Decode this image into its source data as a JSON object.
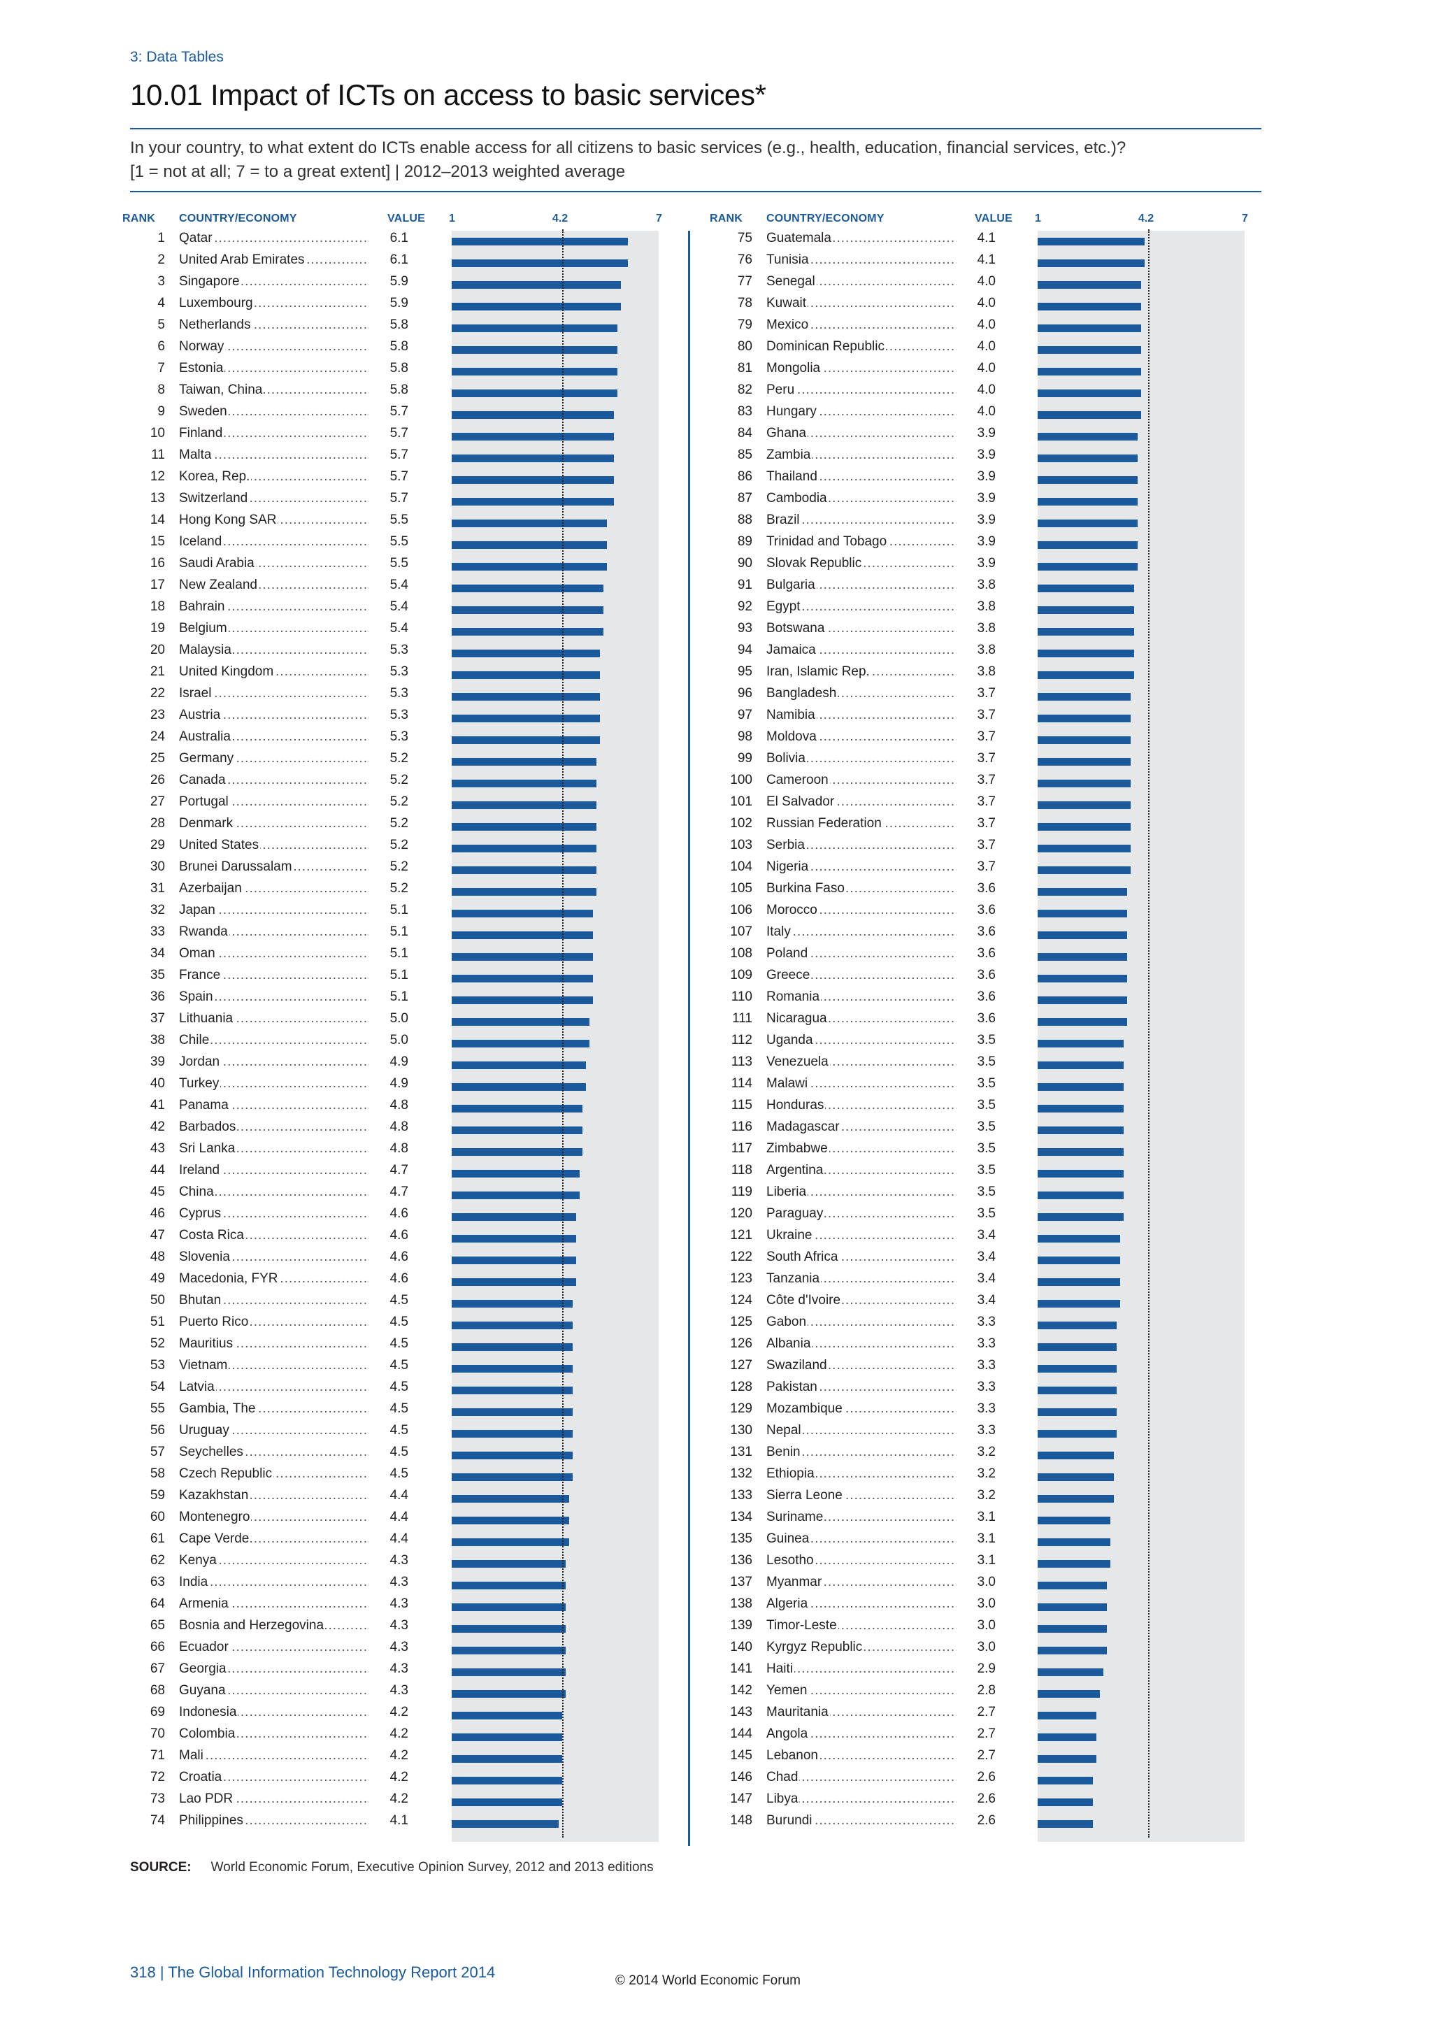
{
  "section": "3: Data Tables",
  "title": "10.01 Impact of ICTs on access to basic services*",
  "question_line1": "In your country, to what extent do ICTs enable access for all citizens to basic services (e.g., health, education, financial services, etc.)?",
  "question_line2": "[1 = not at all; 7 = to a great extent]  |  2012–2013 weighted average",
  "headers": {
    "rank": "RANK",
    "country": "COUNTRY/ECONOMY",
    "value": "VALUE"
  },
  "scale": {
    "min_label": "1",
    "ref_label": "4.2",
    "max_label": "7"
  },
  "source_label": "SOURCE:",
  "source_text": "World Economic Forum, Executive Opinion Survey, 2012 and 2013 editions",
  "footer_page": "318  |  The Global Information Technology Report 2014",
  "footer_copy": "© 2014 World Economic Forum",
  "colors": {
    "bar": "#1a5a9c",
    "panel": "#e6e7e8",
    "accent": "#1a5a9c"
  },
  "chart_data": {
    "type": "bar",
    "orientation": "horizontal",
    "xlim": [
      1,
      7
    ],
    "reference_value": 4.2,
    "rows": [
      {
        "rank": "1",
        "country": "Qatar",
        "value": "6.1"
      },
      {
        "rank": "2",
        "country": "United Arab Emirates",
        "value": "6.1"
      },
      {
        "rank": "3",
        "country": "Singapore",
        "value": "5.9"
      },
      {
        "rank": "4",
        "country": "Luxembourg",
        "value": "5.9"
      },
      {
        "rank": "5",
        "country": "Netherlands",
        "value": "5.8"
      },
      {
        "rank": "6",
        "country": "Norway",
        "value": "5.8"
      },
      {
        "rank": "7",
        "country": "Estonia",
        "value": "5.8"
      },
      {
        "rank": "8",
        "country": "Taiwan, China",
        "value": "5.8"
      },
      {
        "rank": "9",
        "country": "Sweden",
        "value": "5.7"
      },
      {
        "rank": "10",
        "country": "Finland",
        "value": "5.7"
      },
      {
        "rank": "11",
        "country": "Malta",
        "value": "5.7"
      },
      {
        "rank": "12",
        "country": "Korea, Rep.",
        "value": "5.7"
      },
      {
        "rank": "13",
        "country": "Switzerland",
        "value": "5.7"
      },
      {
        "rank": "14",
        "country": "Hong Kong SAR",
        "value": "5.5"
      },
      {
        "rank": "15",
        "country": "Iceland",
        "value": "5.5"
      },
      {
        "rank": "16",
        "country": "Saudi Arabia",
        "value": "5.5"
      },
      {
        "rank": "17",
        "country": "New Zealand",
        "value": "5.4"
      },
      {
        "rank": "18",
        "country": "Bahrain",
        "value": "5.4"
      },
      {
        "rank": "19",
        "country": "Belgium",
        "value": "5.4"
      },
      {
        "rank": "20",
        "country": "Malaysia",
        "value": "5.3"
      },
      {
        "rank": "21",
        "country": "United Kingdom",
        "value": "5.3"
      },
      {
        "rank": "22",
        "country": "Israel",
        "value": "5.3"
      },
      {
        "rank": "23",
        "country": "Austria",
        "value": "5.3"
      },
      {
        "rank": "24",
        "country": "Australia",
        "value": "5.3"
      },
      {
        "rank": "25",
        "country": "Germany",
        "value": "5.2"
      },
      {
        "rank": "26",
        "country": "Canada",
        "value": "5.2"
      },
      {
        "rank": "27",
        "country": "Portugal",
        "value": "5.2"
      },
      {
        "rank": "28",
        "country": "Denmark",
        "value": "5.2"
      },
      {
        "rank": "29",
        "country": "United States",
        "value": "5.2"
      },
      {
        "rank": "30",
        "country": "Brunei Darussalam",
        "value": "5.2"
      },
      {
        "rank": "31",
        "country": "Azerbaijan",
        "value": "5.2"
      },
      {
        "rank": "32",
        "country": "Japan",
        "value": "5.1"
      },
      {
        "rank": "33",
        "country": "Rwanda",
        "value": "5.1"
      },
      {
        "rank": "34",
        "country": "Oman",
        "value": "5.1"
      },
      {
        "rank": "35",
        "country": "France",
        "value": "5.1"
      },
      {
        "rank": "36",
        "country": "Spain",
        "value": "5.1"
      },
      {
        "rank": "37",
        "country": "Lithuania",
        "value": "5.0"
      },
      {
        "rank": "38",
        "country": "Chile",
        "value": "5.0"
      },
      {
        "rank": "39",
        "country": "Jordan",
        "value": "4.9"
      },
      {
        "rank": "40",
        "country": "Turkey",
        "value": "4.9"
      },
      {
        "rank": "41",
        "country": "Panama",
        "value": "4.8"
      },
      {
        "rank": "42",
        "country": "Barbados",
        "value": "4.8"
      },
      {
        "rank": "43",
        "country": "Sri Lanka",
        "value": "4.8"
      },
      {
        "rank": "44",
        "country": "Ireland",
        "value": "4.7"
      },
      {
        "rank": "45",
        "country": "China",
        "value": "4.7"
      },
      {
        "rank": "46",
        "country": "Cyprus",
        "value": "4.6"
      },
      {
        "rank": "47",
        "country": "Costa Rica",
        "value": "4.6"
      },
      {
        "rank": "48",
        "country": "Slovenia",
        "value": "4.6"
      },
      {
        "rank": "49",
        "country": "Macedonia, FYR",
        "value": "4.6"
      },
      {
        "rank": "50",
        "country": "Bhutan",
        "value": "4.5"
      },
      {
        "rank": "51",
        "country": "Puerto Rico",
        "value": "4.5"
      },
      {
        "rank": "52",
        "country": "Mauritius",
        "value": "4.5"
      },
      {
        "rank": "53",
        "country": "Vietnam",
        "value": "4.5"
      },
      {
        "rank": "54",
        "country": "Latvia",
        "value": "4.5"
      },
      {
        "rank": "55",
        "country": "Gambia, The",
        "value": "4.5"
      },
      {
        "rank": "56",
        "country": "Uruguay",
        "value": "4.5"
      },
      {
        "rank": "57",
        "country": "Seychelles",
        "value": "4.5"
      },
      {
        "rank": "58",
        "country": "Czech Republic",
        "value": "4.5"
      },
      {
        "rank": "59",
        "country": "Kazakhstan",
        "value": "4.4"
      },
      {
        "rank": "60",
        "country": "Montenegro",
        "value": "4.4"
      },
      {
        "rank": "61",
        "country": "Cape Verde",
        "value": "4.4"
      },
      {
        "rank": "62",
        "country": "Kenya",
        "value": "4.3"
      },
      {
        "rank": "63",
        "country": "India",
        "value": "4.3"
      },
      {
        "rank": "64",
        "country": "Armenia",
        "value": "4.3"
      },
      {
        "rank": "65",
        "country": "Bosnia and Herzegovina",
        "value": "4.3"
      },
      {
        "rank": "66",
        "country": "Ecuador",
        "value": "4.3"
      },
      {
        "rank": "67",
        "country": "Georgia",
        "value": "4.3"
      },
      {
        "rank": "68",
        "country": "Guyana",
        "value": "4.3"
      },
      {
        "rank": "69",
        "country": "Indonesia",
        "value": "4.2"
      },
      {
        "rank": "70",
        "country": "Colombia",
        "value": "4.2"
      },
      {
        "rank": "71",
        "country": "Mali",
        "value": "4.2"
      },
      {
        "rank": "72",
        "country": "Croatia",
        "value": "4.2"
      },
      {
        "rank": "73",
        "country": "Lao PDR",
        "value": "4.2"
      },
      {
        "rank": "74",
        "country": "Philippines",
        "value": "4.1"
      },
      {
        "rank": "75",
        "country": "Guatemala",
        "value": "4.1"
      },
      {
        "rank": "76",
        "country": "Tunisia",
        "value": "4.1"
      },
      {
        "rank": "77",
        "country": "Senegal",
        "value": "4.0"
      },
      {
        "rank": "78",
        "country": "Kuwait",
        "value": "4.0"
      },
      {
        "rank": "79",
        "country": "Mexico",
        "value": "4.0"
      },
      {
        "rank": "80",
        "country": "Dominican Republic",
        "value": "4.0"
      },
      {
        "rank": "81",
        "country": "Mongolia",
        "value": "4.0"
      },
      {
        "rank": "82",
        "country": "Peru",
        "value": "4.0"
      },
      {
        "rank": "83",
        "country": "Hungary",
        "value": "4.0"
      },
      {
        "rank": "84",
        "country": "Ghana",
        "value": "3.9"
      },
      {
        "rank": "85",
        "country": "Zambia",
        "value": "3.9"
      },
      {
        "rank": "86",
        "country": "Thailand",
        "value": "3.9"
      },
      {
        "rank": "87",
        "country": "Cambodia",
        "value": "3.9"
      },
      {
        "rank": "88",
        "country": "Brazil",
        "value": "3.9"
      },
      {
        "rank": "89",
        "country": "Trinidad and Tobago",
        "value": "3.9"
      },
      {
        "rank": "90",
        "country": "Slovak Republic",
        "value": "3.9"
      },
      {
        "rank": "91",
        "country": "Bulgaria",
        "value": "3.8"
      },
      {
        "rank": "92",
        "country": "Egypt",
        "value": "3.8"
      },
      {
        "rank": "93",
        "country": "Botswana",
        "value": "3.8"
      },
      {
        "rank": "94",
        "country": "Jamaica",
        "value": "3.8"
      },
      {
        "rank": "95",
        "country": "Iran, Islamic Rep.",
        "value": "3.8"
      },
      {
        "rank": "96",
        "country": "Bangladesh",
        "value": "3.7"
      },
      {
        "rank": "97",
        "country": "Namibia",
        "value": "3.7"
      },
      {
        "rank": "98",
        "country": "Moldova",
        "value": "3.7"
      },
      {
        "rank": "99",
        "country": "Bolivia",
        "value": "3.7"
      },
      {
        "rank": "100",
        "country": "Cameroon",
        "value": "3.7"
      },
      {
        "rank": "101",
        "country": "El Salvador",
        "value": "3.7"
      },
      {
        "rank": "102",
        "country": "Russian Federation",
        "value": "3.7"
      },
      {
        "rank": "103",
        "country": "Serbia",
        "value": "3.7"
      },
      {
        "rank": "104",
        "country": "Nigeria",
        "value": "3.7"
      },
      {
        "rank": "105",
        "country": "Burkina Faso",
        "value": "3.6"
      },
      {
        "rank": "106",
        "country": "Morocco",
        "value": "3.6"
      },
      {
        "rank": "107",
        "country": "Italy",
        "value": "3.6"
      },
      {
        "rank": "108",
        "country": "Poland",
        "value": "3.6"
      },
      {
        "rank": "109",
        "country": "Greece",
        "value": "3.6"
      },
      {
        "rank": "110",
        "country": "Romania",
        "value": "3.6"
      },
      {
        "rank": "111",
        "country": "Nicaragua",
        "value": "3.6"
      },
      {
        "rank": "112",
        "country": "Uganda",
        "value": "3.5"
      },
      {
        "rank": "113",
        "country": "Venezuela",
        "value": "3.5"
      },
      {
        "rank": "114",
        "country": "Malawi",
        "value": "3.5"
      },
      {
        "rank": "115",
        "country": "Honduras",
        "value": "3.5"
      },
      {
        "rank": "116",
        "country": "Madagascar",
        "value": "3.5"
      },
      {
        "rank": "117",
        "country": "Zimbabwe",
        "value": "3.5"
      },
      {
        "rank": "118",
        "country": "Argentina",
        "value": "3.5"
      },
      {
        "rank": "119",
        "country": "Liberia",
        "value": "3.5"
      },
      {
        "rank": "120",
        "country": "Paraguay",
        "value": "3.5"
      },
      {
        "rank": "121",
        "country": "Ukraine",
        "value": "3.4"
      },
      {
        "rank": "122",
        "country": "South Africa",
        "value": "3.4"
      },
      {
        "rank": "123",
        "country": "Tanzania",
        "value": "3.4"
      },
      {
        "rank": "124",
        "country": "Côte d'Ivoire",
        "value": "3.4"
      },
      {
        "rank": "125",
        "country": "Gabon",
        "value": "3.3"
      },
      {
        "rank": "126",
        "country": "Albania",
        "value": "3.3"
      },
      {
        "rank": "127",
        "country": "Swaziland",
        "value": "3.3"
      },
      {
        "rank": "128",
        "country": "Pakistan",
        "value": "3.3"
      },
      {
        "rank": "129",
        "country": "Mozambique",
        "value": "3.3"
      },
      {
        "rank": "130",
        "country": "Nepal",
        "value": "3.3"
      },
      {
        "rank": "131",
        "country": "Benin",
        "value": "3.2"
      },
      {
        "rank": "132",
        "country": "Ethiopia",
        "value": "3.2"
      },
      {
        "rank": "133",
        "country": "Sierra Leone",
        "value": "3.2"
      },
      {
        "rank": "134",
        "country": "Suriname",
        "value": "3.1"
      },
      {
        "rank": "135",
        "country": "Guinea",
        "value": "3.1"
      },
      {
        "rank": "136",
        "country": "Lesotho",
        "value": "3.1"
      },
      {
        "rank": "137",
        "country": "Myanmar",
        "value": "3.0"
      },
      {
        "rank": "138",
        "country": "Algeria",
        "value": "3.0"
      },
      {
        "rank": "139",
        "country": "Timor-Leste",
        "value": "3.0"
      },
      {
        "rank": "140",
        "country": "Kyrgyz Republic",
        "value": "3.0"
      },
      {
        "rank": "141",
        "country": "Haiti",
        "value": "2.9"
      },
      {
        "rank": "142",
        "country": "Yemen",
        "value": "2.8"
      },
      {
        "rank": "143",
        "country": "Mauritania",
        "value": "2.7"
      },
      {
        "rank": "144",
        "country": "Angola",
        "value": "2.7"
      },
      {
        "rank": "145",
        "country": "Lebanon",
        "value": "2.7"
      },
      {
        "rank": "146",
        "country": "Chad",
        "value": "2.6"
      },
      {
        "rank": "147",
        "country": "Libya",
        "value": "2.6"
      },
      {
        "rank": "148",
        "country": "Burundi",
        "value": "2.6"
      }
    ]
  }
}
